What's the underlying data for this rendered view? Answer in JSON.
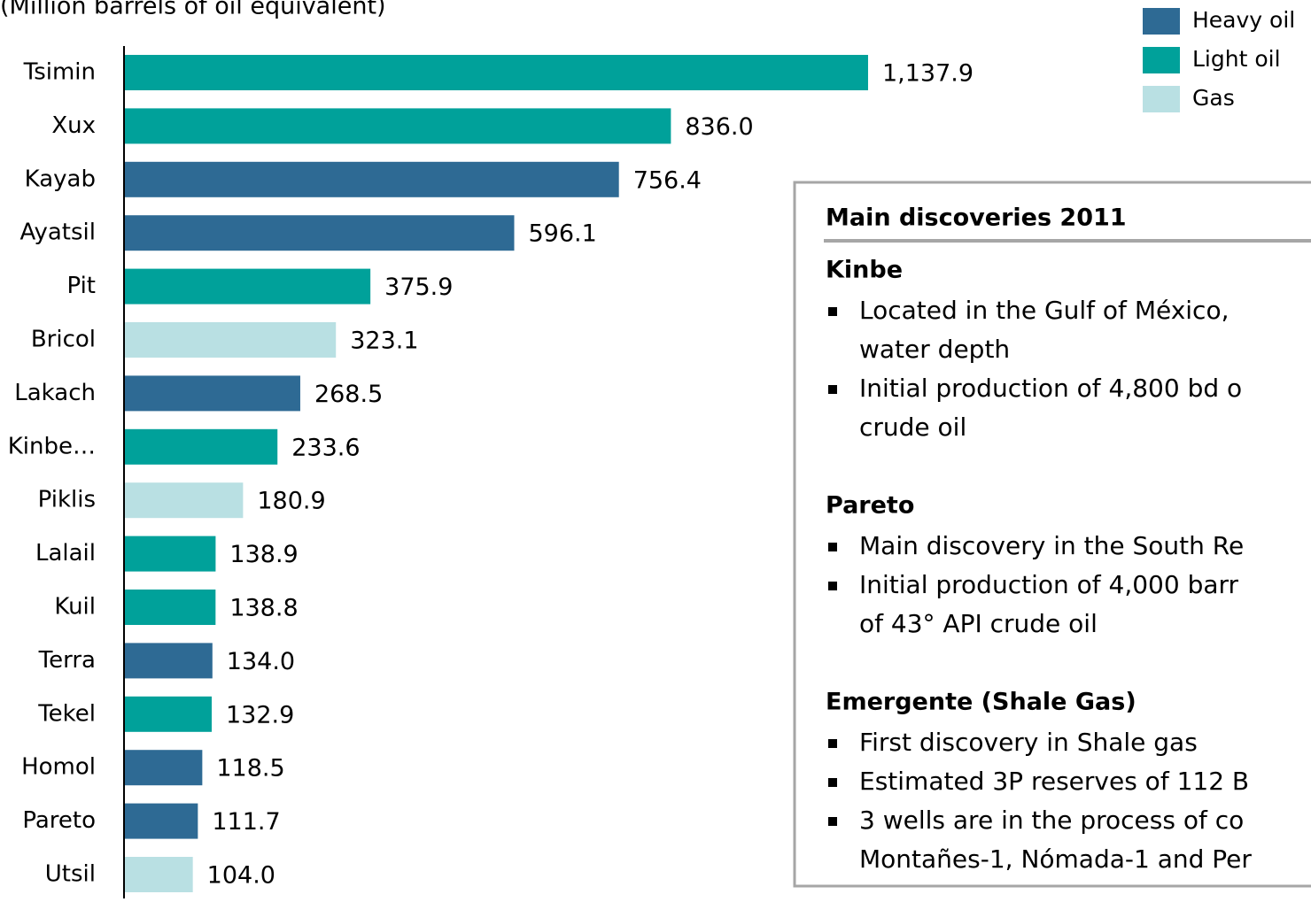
{
  "chart_data": {
    "type": "bar",
    "orientation": "horizontal",
    "subtitle": "(Million barrels of oil equivalent)",
    "categories": [
      "Tsimin",
      "Xux",
      "Kayab",
      "Ayatsil",
      "Pit",
      "Bricol",
      "Lakach",
      "Kinbe…",
      "Piklis",
      "Lalail",
      "Kuil",
      "Terra",
      "Tekel",
      "Homol",
      "Pareto",
      "Utsil"
    ],
    "series": [
      {
        "name": "Heavy oil",
        "color": "#2e6a94",
        "values": [
          null,
          null,
          756.4,
          596.1,
          null,
          null,
          268.5,
          null,
          null,
          null,
          null,
          134,
          null,
          118.5,
          111.7,
          null
        ],
        "value_labels": [
          null,
          null,
          "756.4",
          "596.1",
          null,
          null,
          "268.5",
          null,
          null,
          null,
          null,
          "134.0",
          null,
          "118.5",
          "111.7",
          null
        ]
      },
      {
        "name": "Light oil",
        "color": "#00a19a",
        "values": [
          1137.9,
          836,
          null,
          null,
          375.9,
          null,
          null,
          233.6,
          null,
          138.9,
          138.8,
          null,
          132.9,
          null,
          null,
          null
        ],
        "value_labels": [
          "1,137.9",
          "836.0",
          null,
          null,
          "375.9",
          null,
          null,
          "233.6",
          null,
          "138.9",
          "138.8",
          null,
          "132.9",
          null,
          null,
          null
        ]
      },
      {
        "name": "Gas",
        "color": "#b9e0e3",
        "values": [
          null,
          null,
          null,
          null,
          null,
          323.1,
          null,
          null,
          180.9,
          null,
          null,
          null,
          null,
          null,
          null,
          104
        ],
        "value_labels": [
          null,
          null,
          null,
          null,
          null,
          "323.1",
          null,
          null,
          "180.9",
          null,
          null,
          null,
          null,
          null,
          null,
          "104.0"
        ]
      }
    ],
    "legend": "top-right"
  },
  "panel": {
    "title": "Main discoveries 2011",
    "sections": [
      {
        "heading": "Kinbe",
        "bullets": [
          [
            "Located in the Gulf of México,",
            "water depth"
          ],
          [
            "Initial production of 4,800 bd o",
            "crude oil"
          ]
        ]
      },
      {
        "heading": "Pareto",
        "bullets": [
          [
            "Main discovery in the South Re"
          ],
          [
            "Initial production of 4,000 barr",
            "of 43° API crude oil"
          ]
        ]
      },
      {
        "heading": "Emergente (Shale Gas)",
        "bullets": [
          [
            "First discovery in Shale gas"
          ],
          [
            "Estimated 3P reserves of 112 B"
          ],
          [
            "3 wells are in the process of co",
            "Montañes-1, Nómada-1 and Per"
          ]
        ]
      }
    ]
  }
}
